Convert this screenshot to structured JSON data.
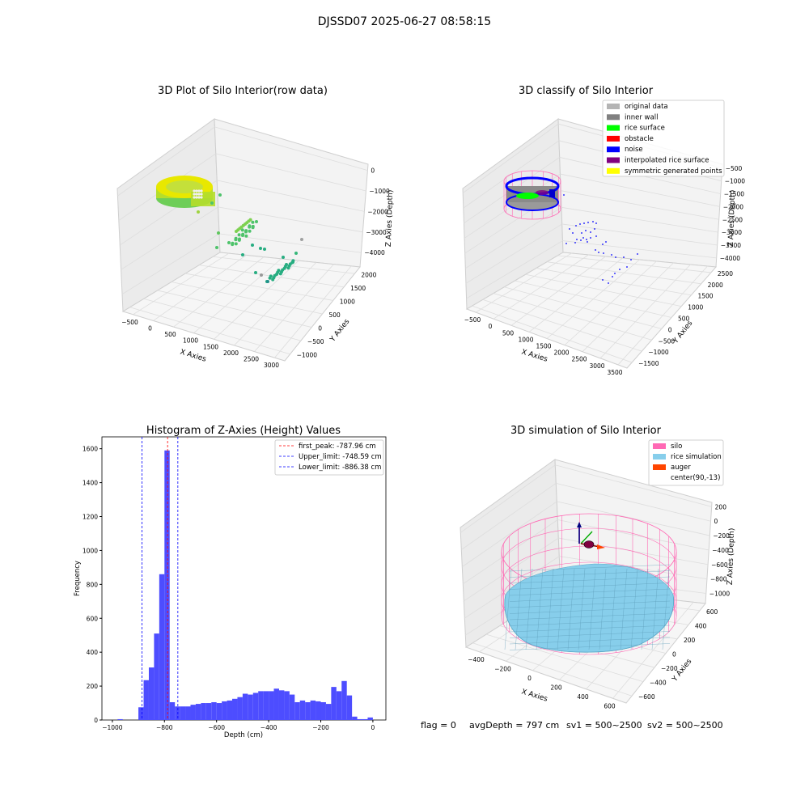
{
  "figure": {
    "suptitle": "DJSSD07 2025-06-27 08:58:15",
    "status_line": {
      "flag": "flag = 0",
      "avg": "avgDepth = 797 cm",
      "sv1": "sv1 = 500~2500",
      "sv2": "sv2 = 500~2500"
    }
  },
  "chart_data": [
    {
      "type": "scatter",
      "projection": "3d",
      "title": "3D Plot of Silo Interior(row data)",
      "xlabel": "X Axies",
      "ylabel": "Y Axies",
      "zlabel": "Z Axies (Depth)",
      "xticks": [
        "−500",
        "0",
        "500",
        "1000",
        "1500",
        "2000",
        "2500",
        "3000"
      ],
      "yticks": [
        "−1000",
        "−500",
        "0",
        "500",
        "1000",
        "1500",
        "2000"
      ],
      "zticks": [
        "0",
        "−1000",
        "−2000",
        "−3000",
        "−4000"
      ],
      "grid": true,
      "colors": {
        "ring_top": "#e8e800",
        "ring_mid": "#b5de2b",
        "ring_bottom": "#6ece58",
        "cluster_a": "#4ec36b",
        "cluster_b": "#27ad81",
        "outlier": "#9fa0a0"
      }
    },
    {
      "type": "scatter",
      "projection": "3d",
      "title": "3D classify of Silo Interior",
      "xlabel": "X Axies",
      "ylabel": "Y Axies",
      "zlabel": "Z Axies (Depth)",
      "xticks": [
        "−500",
        "0",
        "500",
        "1000",
        "1500",
        "2000",
        "2500",
        "3000",
        "3500"
      ],
      "yticks": [
        "−1500",
        "−1000",
        "−500",
        "0",
        "500",
        "1000",
        "1500",
        "2000",
        "2500"
      ],
      "zticks": [
        "−500",
        "−1000",
        "−1500",
        "−2000",
        "−2500",
        "−3000",
        "−3500",
        "−4000"
      ],
      "grid": true,
      "legend_position": "top-right",
      "legend": [
        {
          "label": "original data",
          "color": "#b4b4b4"
        },
        {
          "label": "inner wall",
          "color": "#808080"
        },
        {
          "label": "rice surface",
          "color": "#00ff00"
        },
        {
          "label": "obstacle",
          "color": "#ff0000"
        },
        {
          "label": "noise",
          "color": "#0000ff"
        },
        {
          "label": "interpolated rice surface",
          "color": "#800080"
        },
        {
          "label": "symmetric generated points",
          "color": "#ffff00"
        }
      ]
    },
    {
      "type": "bar",
      "subtype": "histogram",
      "title": "Histogram of Z-Axies (Height) Values",
      "xlabel": "Depth (cm)",
      "ylabel": "Frequency",
      "xlim": [
        -1040,
        50
      ],
      "ylim": [
        0,
        1670
      ],
      "xticks": [
        -1000,
        -800,
        -600,
        -400,
        -200,
        0
      ],
      "xtick_labels": [
        "−1000",
        "−800",
        "−600",
        "−400",
        "−200",
        "0"
      ],
      "yticks": [
        0,
        200,
        400,
        600,
        800,
        1000,
        1200,
        1400,
        1600
      ],
      "bar_color": "#4d4dff",
      "bin_width": 20,
      "bins": [
        {
          "x0": -980,
          "y": 5
        },
        {
          "x0": -900,
          "y": 5
        },
        {
          "x0": -900,
          "y": 75
        },
        {
          "x0": -880,
          "y": 235
        },
        {
          "x0": -860,
          "y": 310
        },
        {
          "x0": -840,
          "y": 510
        },
        {
          "x0": -820,
          "y": 860
        },
        {
          "x0": -800,
          "y": 1590
        },
        {
          "x0": -780,
          "y": 105
        },
        {
          "x0": -760,
          "y": 80
        },
        {
          "x0": -740,
          "y": 80
        },
        {
          "x0": -720,
          "y": 80
        },
        {
          "x0": -700,
          "y": 90
        },
        {
          "x0": -680,
          "y": 95
        },
        {
          "x0": -660,
          "y": 100
        },
        {
          "x0": -640,
          "y": 100
        },
        {
          "x0": -620,
          "y": 105
        },
        {
          "x0": -600,
          "y": 100
        },
        {
          "x0": -580,
          "y": 110
        },
        {
          "x0": -560,
          "y": 115
        },
        {
          "x0": -540,
          "y": 125
        },
        {
          "x0": -520,
          "y": 135
        },
        {
          "x0": -500,
          "y": 155
        },
        {
          "x0": -480,
          "y": 150
        },
        {
          "x0": -460,
          "y": 160
        },
        {
          "x0": -440,
          "y": 170
        },
        {
          "x0": -420,
          "y": 170
        },
        {
          "x0": -400,
          "y": 170
        },
        {
          "x0": -380,
          "y": 185
        },
        {
          "x0": -360,
          "y": 175
        },
        {
          "x0": -340,
          "y": 170
        },
        {
          "x0": -320,
          "y": 150
        },
        {
          "x0": -300,
          "y": 105
        },
        {
          "x0": -280,
          "y": 115
        },
        {
          "x0": -260,
          "y": 105
        },
        {
          "x0": -240,
          "y": 115
        },
        {
          "x0": -220,
          "y": 110
        },
        {
          "x0": -200,
          "y": 105
        },
        {
          "x0": -180,
          "y": 95
        },
        {
          "x0": -160,
          "y": 195
        },
        {
          "x0": -140,
          "y": 170
        },
        {
          "x0": -120,
          "y": 230
        },
        {
          "x0": -100,
          "y": 145
        },
        {
          "x0": -80,
          "y": 20
        },
        {
          "x0": -60,
          "y": 5
        },
        {
          "x0": -40,
          "y": 5
        },
        {
          "x0": -20,
          "y": 15
        }
      ],
      "vlines": [
        {
          "x": -787.96,
          "color": "#ff0000",
          "label": "first_peak: -787.96 cm"
        },
        {
          "x": -748.59,
          "color": "#0000ff",
          "label": "Upper_limit: -748.59 cm"
        },
        {
          "x": -886.38,
          "color": "#0000ff",
          "label": "Lower_limit: -886.38 cm"
        }
      ],
      "legend_position": "top-right"
    },
    {
      "type": "surface",
      "projection": "3d",
      "title": "3D simulation of Silo Interior",
      "xlabel": "X Axies",
      "ylabel": "Y Axies",
      "zlabel": "Z Axies (Depth)",
      "xticks": [
        "−400",
        "−200",
        "0",
        "200",
        "400",
        "600"
      ],
      "yticks": [
        "−600",
        "−400",
        "−200",
        "0",
        "200",
        "400",
        "600"
      ],
      "zticks": [
        "200",
        "0",
        "−200",
        "−400",
        "−600",
        "−800",
        "−1000"
      ],
      "grid": true,
      "legend_position": "top-right",
      "legend": [
        {
          "label": "silo",
          "color": "#ff69b4"
        },
        {
          "label": "rice simulation",
          "color": "#87ceeb"
        },
        {
          "label": "auger",
          "color": "#ff4500"
        },
        {
          "label": "center(90,-13)",
          "color": "#ffffff"
        }
      ]
    }
  ]
}
